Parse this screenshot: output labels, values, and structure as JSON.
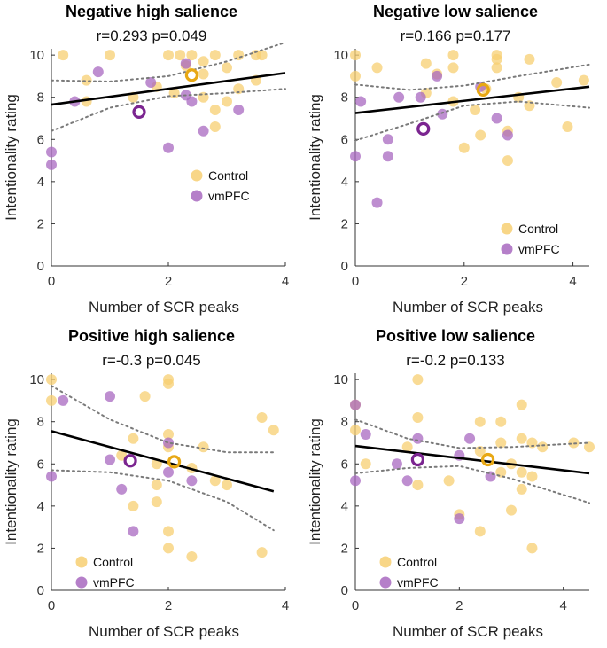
{
  "colors": {
    "control": "#f7cf72",
    "vmpfc": "#a868c0",
    "control_mean_ring": "#e8a814",
    "vmpfc_mean_ring": "#7b2590",
    "fit_line": "#000000",
    "ci_line": "#7a7a7a"
  },
  "chart_data": [
    {
      "type": "scatter",
      "title": "Negative high salience",
      "stat": "r=0.293 p=0.049",
      "xlabel": "Number of SCR peaks",
      "ylabel": "Intentionality rating",
      "xlim": [
        0,
        4
      ],
      "ylim": [
        0,
        10.3
      ],
      "xticks": [
        "0",
        "2",
        "4"
      ],
      "yticks": [
        "0",
        "2",
        "4",
        "6",
        "8",
        "10"
      ],
      "legend": [
        "Control",
        "vmPFC"
      ],
      "legend_position": "middle-right",
      "series": [
        {
          "name": "Control",
          "points": [
            [
              0.2,
              10
            ],
            [
              1,
              10
            ],
            [
              2,
              10
            ],
            [
              2.2,
              10
            ],
            [
              2.4,
              10
            ],
            [
              2.8,
              10
            ],
            [
              3.2,
              10
            ],
            [
              3.5,
              10
            ],
            [
              3.6,
              10
            ],
            [
              2.6,
              9.7
            ],
            [
              2.3,
              9.5
            ],
            [
              3,
              9.4
            ],
            [
              2.6,
              9.1
            ],
            [
              3.5,
              8.8
            ],
            [
              0.6,
              8.8
            ],
            [
              1.8,
              8.5
            ],
            [
              3.2,
              8.4
            ],
            [
              2.1,
              8.2
            ],
            [
              2.6,
              8
            ],
            [
              3,
              7.8
            ],
            [
              1.4,
              8
            ],
            [
              0.6,
              7.8
            ],
            [
              2.8,
              7.4
            ],
            [
              2.8,
              6.6
            ]
          ]
        },
        {
          "name": "vmPFC",
          "points": [
            [
              0.8,
              9.2
            ],
            [
              2.3,
              9.6
            ],
            [
              1.7,
              8.7
            ],
            [
              2.3,
              8.1
            ],
            [
              0.4,
              7.8
            ],
            [
              2.4,
              7.8
            ],
            [
              3.2,
              7.4
            ],
            [
              2.6,
              6.4
            ],
            [
              2,
              5.6
            ],
            [
              0,
              5.4
            ],
            [
              0,
              4.8
            ]
          ]
        }
      ],
      "means": {
        "control": [
          2.4,
          9.05
        ],
        "vmpfc": [
          1.5,
          7.3
        ]
      },
      "fit": {
        "x": [
          0,
          4
        ],
        "y": [
          7.65,
          9.15
        ]
      },
      "ci_upper": [
        [
          0,
          8.8
        ],
        [
          1,
          8.75
        ],
        [
          2,
          9
        ],
        [
          3,
          9.7
        ],
        [
          4,
          10.6
        ]
      ],
      "ci_lower": [
        [
          0,
          6.4
        ],
        [
          1,
          7.5
        ],
        [
          2,
          8.05
        ],
        [
          3,
          8.2
        ],
        [
          4,
          8.4
        ]
      ]
    },
    {
      "type": "scatter",
      "title": "Negative low salience",
      "stat": "r=0.166 p=0.177",
      "xlabel": "Number of SCR peaks",
      "ylabel": "Intentionality rating",
      "xlim": [
        0,
        4.3
      ],
      "ylim": [
        0,
        10.3
      ],
      "xticks": [
        "0",
        "2",
        "4"
      ],
      "yticks": [
        "0",
        "2",
        "4",
        "6",
        "8",
        "10"
      ],
      "legend": [
        "Control",
        "vmPFC"
      ],
      "legend_position": "bottom-right",
      "series": [
        {
          "name": "Control",
          "points": [
            [
              0,
              10
            ],
            [
              1.8,
              10
            ],
            [
              2.6,
              10
            ],
            [
              2.6,
              9.8
            ],
            [
              3.2,
              9.8
            ],
            [
              0.4,
              9.4
            ],
            [
              1.3,
              9.6
            ],
            [
              1.8,
              9.4
            ],
            [
              2.6,
              9.4
            ],
            [
              1.5,
              9.1
            ],
            [
              0,
              9
            ],
            [
              4.2,
              8.8
            ],
            [
              3.7,
              8.7
            ],
            [
              2.4,
              8.4
            ],
            [
              1.3,
              8.2
            ],
            [
              3,
              8
            ],
            [
              1.8,
              7.8
            ],
            [
              3.2,
              7.6
            ],
            [
              2.2,
              7.4
            ],
            [
              3.9,
              6.6
            ],
            [
              2.8,
              6.4
            ],
            [
              2.3,
              6.2
            ],
            [
              2,
              5.6
            ],
            [
              2.8,
              5
            ]
          ]
        },
        {
          "name": "vmPFC",
          "points": [
            [
              1.5,
              9
            ],
            [
              2.3,
              8.5
            ],
            [
              0.8,
              8
            ],
            [
              1.2,
              8
            ],
            [
              0.1,
              7.8
            ],
            [
              1.6,
              7.2
            ],
            [
              2.6,
              7
            ],
            [
              2.8,
              6.2
            ],
            [
              0.6,
              6
            ],
            [
              0,
              5.2
            ],
            [
              0.6,
              5.2
            ],
            [
              0.4,
              3
            ]
          ]
        }
      ],
      "means": {
        "control": [
          2.35,
          8.35
        ],
        "vmpfc": [
          1.25,
          6.5
        ]
      },
      "fit": {
        "x": [
          0,
          4.3
        ],
        "y": [
          7.25,
          8.5
        ]
      },
      "ci_upper": [
        [
          0,
          8.6
        ],
        [
          1,
          8.35
        ],
        [
          2,
          8.55
        ],
        [
          3,
          9
        ],
        [
          4.3,
          9.55
        ]
      ],
      "ci_lower": [
        [
          0,
          5.95
        ],
        [
          1,
          6.75
        ],
        [
          2,
          7.6
        ],
        [
          3,
          7.8
        ],
        [
          4.3,
          7.5
        ]
      ]
    },
    {
      "type": "scatter",
      "title": "Positive high salience",
      "stat": "r=-0.3 p=0.045",
      "xlabel": "Number of SCR peaks",
      "ylabel": "Intentionality rating",
      "xlim": [
        0,
        4
      ],
      "ylim": [
        0,
        10.3
      ],
      "xticks": [
        "0",
        "2",
        "4"
      ],
      "yticks": [
        "0",
        "2",
        "4",
        "6",
        "8",
        "10"
      ],
      "legend": [
        "Control",
        "vmPFC"
      ],
      "legend_position": "bottom-left",
      "series": [
        {
          "name": "Control",
          "points": [
            [
              0,
              10
            ],
            [
              2,
              10
            ],
            [
              2,
              9.8
            ],
            [
              0,
              9
            ],
            [
              1.6,
              9.2
            ],
            [
              3.6,
              8.2
            ],
            [
              3.8,
              7.6
            ],
            [
              2,
              7.4
            ],
            [
              1.4,
              7.2
            ],
            [
              2,
              6.8
            ],
            [
              2.6,
              6.8
            ],
            [
              1.2,
              6.4
            ],
            [
              1.8,
              6
            ],
            [
              2.4,
              5.8
            ],
            [
              2.8,
              5.2
            ],
            [
              3,
              5
            ],
            [
              1.8,
              5
            ],
            [
              1.8,
              4.2
            ],
            [
              1.4,
              4
            ],
            [
              2,
              2.8
            ],
            [
              2,
              2
            ],
            [
              2.4,
              1.6
            ],
            [
              3.6,
              1.8
            ]
          ]
        },
        {
          "name": "vmPFC",
          "points": [
            [
              0.2,
              9
            ],
            [
              1,
              9.2
            ],
            [
              2,
              7
            ],
            [
              1,
              6.2
            ],
            [
              0,
              5.4
            ],
            [
              2,
              5.6
            ],
            [
              2.4,
              5.2
            ],
            [
              1.2,
              4.8
            ],
            [
              1.4,
              2.8
            ]
          ]
        }
      ],
      "means": {
        "control": [
          2.1,
          6.1
        ],
        "vmpfc": [
          1.35,
          6.15
        ]
      },
      "fit": {
        "x": [
          0,
          3.8
        ],
        "y": [
          7.55,
          4.7
        ]
      },
      "ci_upper": [
        [
          0,
          9.7
        ],
        [
          1,
          8.1
        ],
        [
          2,
          7
        ],
        [
          3,
          6.55
        ],
        [
          3.8,
          6.55
        ]
      ],
      "ci_lower": [
        [
          0,
          5.7
        ],
        [
          1,
          5.6
        ],
        [
          2,
          5.2
        ],
        [
          3,
          4.2
        ],
        [
          3.8,
          2.85
        ]
      ]
    },
    {
      "type": "scatter",
      "title": "Positive low salience",
      "stat": "r=-0.2 p=0.133",
      "xlabel": "Number of SCR peaks",
      "ylabel": "Intentionality rating",
      "xlim": [
        0,
        4.5
      ],
      "ylim": [
        0,
        10.3
      ],
      "xticks": [
        "0",
        "2",
        "4"
      ],
      "yticks": [
        "0",
        "2",
        "4",
        "6",
        "8",
        "10"
      ],
      "legend": [
        "Control",
        "vmPFC"
      ],
      "legend_position": "bottom-left",
      "series": [
        {
          "name": "Control",
          "points": [
            [
              1.2,
              10
            ],
            [
              0,
              8.8
            ],
            [
              3.2,
              8.8
            ],
            [
              1.2,
              8.2
            ],
            [
              2.4,
              8
            ],
            [
              2.8,
              8
            ],
            [
              0,
              7.6
            ],
            [
              3.2,
              7.2
            ],
            [
              2.8,
              7
            ],
            [
              3.4,
              7
            ],
            [
              4.2,
              7
            ],
            [
              1,
              6.8
            ],
            [
              2.4,
              6.6
            ],
            [
              3.6,
              6.8
            ],
            [
              4.5,
              6.8
            ],
            [
              3,
              6
            ],
            [
              0.2,
              6
            ],
            [
              3.2,
              5.6
            ],
            [
              2.8,
              5.6
            ],
            [
              1.8,
              5.2
            ],
            [
              1.2,
              5
            ],
            [
              3.4,
              5.4
            ],
            [
              3.2,
              4.8
            ],
            [
              2,
              3.6
            ],
            [
              3,
              3.8
            ],
            [
              2.4,
              2.8
            ],
            [
              3.4,
              2
            ]
          ]
        },
        {
          "name": "vmPFC",
          "points": [
            [
              0,
              8.8
            ],
            [
              0.2,
              7.4
            ],
            [
              1.2,
              7.2
            ],
            [
              2.2,
              7.2
            ],
            [
              0.8,
              6
            ],
            [
              2,
              6.4
            ],
            [
              2.6,
              5.4
            ],
            [
              0,
              5.2
            ],
            [
              1,
              5.2
            ],
            [
              2,
              3.4
            ]
          ]
        }
      ],
      "means": {
        "control": [
          2.55,
          6.2
        ],
        "vmpfc": [
          1.2,
          6.2
        ]
      },
      "fit": {
        "x": [
          0,
          4.5
        ],
        "y": [
          6.85,
          5.55
        ]
      },
      "ci_upper": [
        [
          0,
          8.1
        ],
        [
          1,
          7.2
        ],
        [
          2,
          6.75
        ],
        [
          3,
          6.8
        ],
        [
          4.5,
          7
        ]
      ],
      "ci_lower": [
        [
          0,
          5.55
        ],
        [
          1,
          5.8
        ],
        [
          2,
          5.9
        ],
        [
          3,
          5.3
        ],
        [
          4.5,
          4.15
        ]
      ]
    }
  ]
}
